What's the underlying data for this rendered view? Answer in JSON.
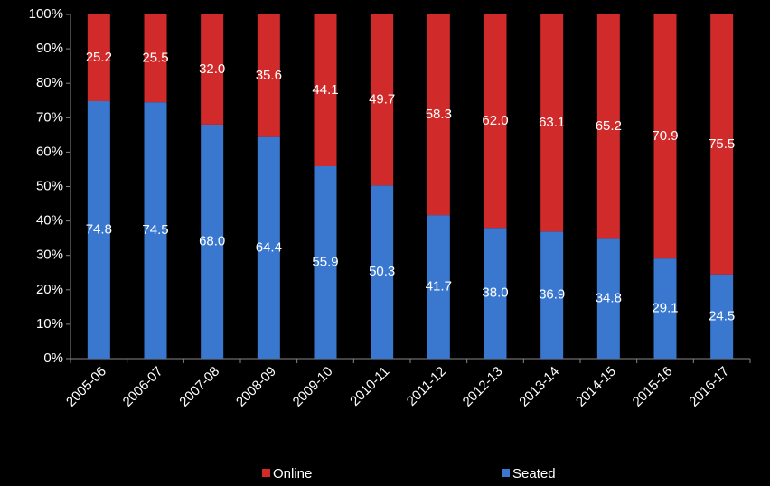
{
  "chart_data": {
    "type": "stacked-bar",
    "categories": [
      "2005-06",
      "2006-07",
      "2007-08",
      "2008-09",
      "2009-10",
      "2010-11",
      "2011-12",
      "2012-13",
      "2013-14",
      "2014-15",
      "2015-16",
      "2016-17"
    ],
    "series": [
      {
        "name": "Seated",
        "color": "#3a78d0",
        "values": [
          74.8,
          74.5,
          68.0,
          64.4,
          55.9,
          50.3,
          41.7,
          38.0,
          36.9,
          34.8,
          29.1,
          24.5
        ],
        "value_labels": [
          "74.8",
          "74.5",
          "68.0",
          "64.4",
          "55.9",
          "50.3",
          "41.7",
          "38.0",
          "36.9",
          "34.8",
          "29.1",
          "24.5"
        ]
      },
      {
        "name": "Online",
        "color": "#d02a2a",
        "values": [
          25.2,
          25.5,
          32.0,
          35.6,
          44.1,
          49.7,
          58.3,
          62.0,
          63.1,
          65.2,
          70.9,
          75.5
        ],
        "value_labels": [
          "25.2",
          "25.5",
          "32.0",
          "35.6",
          "44.1",
          "49.7",
          "58.3",
          "62.0",
          "63.1",
          "65.2",
          "70.9",
          "75.5"
        ]
      }
    ],
    "ylim": [
      0,
      100
    ],
    "yticks": [
      {
        "value": 0,
        "label": "0%"
      },
      {
        "value": 10,
        "label": "10%"
      },
      {
        "value": 20,
        "label": "20%"
      },
      {
        "value": 30,
        "label": "30%"
      },
      {
        "value": 40,
        "label": "40%"
      },
      {
        "value": 50,
        "label": "50%"
      },
      {
        "value": 60,
        "label": "60%"
      },
      {
        "value": 70,
        "label": "70%"
      },
      {
        "value": 80,
        "label": "80%"
      },
      {
        "value": 90,
        "label": "90%"
      },
      {
        "value": 100,
        "label": "100%"
      }
    ],
    "grid": false
  }
}
